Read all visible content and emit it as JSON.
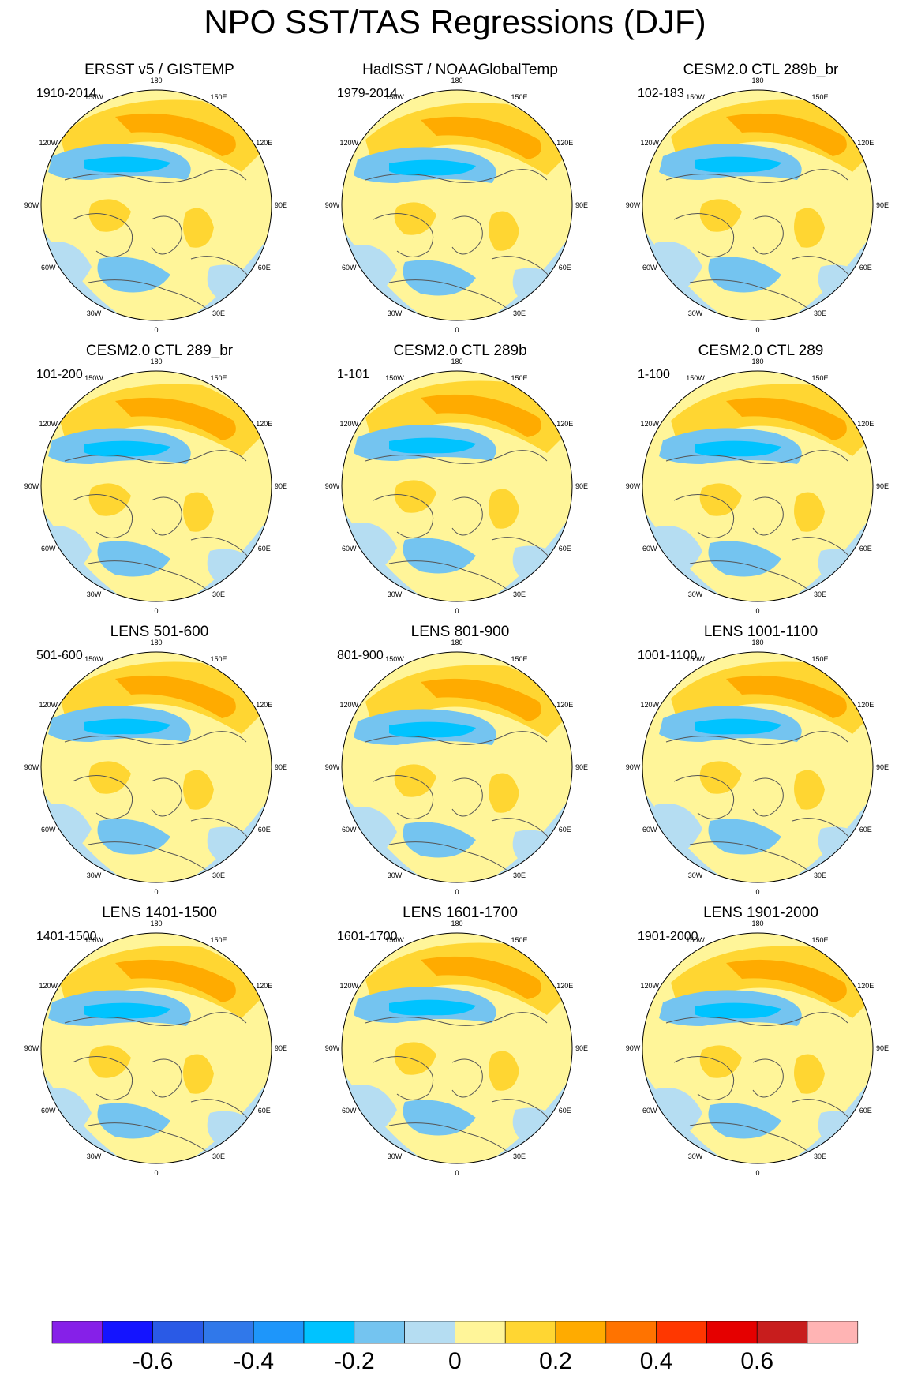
{
  "title": "NPO SST/TAS Regressions (DJF)",
  "colors": {
    "levels": [
      "#8620e8",
      "#1414ff",
      "#2a5ae6",
      "#3078ea",
      "#1e96fa",
      "#00c3ff",
      "#74c4f0",
      "#b5ddf2",
      "#fff599",
      "#ffd632",
      "#ffab00",
      "#ff7300",
      "#ff3700",
      "#e50000",
      "#c81d1d",
      "#ffb4b4"
    ],
    "coast": "#555555",
    "missing": "#ffffff"
  },
  "longitude_labels": [
    "180",
    "150E",
    "120E",
    "90E",
    "60E",
    "30E",
    "0",
    "30W",
    "60W",
    "90W",
    "120W",
    "150W"
  ],
  "panels": [
    {
      "title": "ERSST v5 / GISTEMP",
      "period": "1910-2014"
    },
    {
      "title": "HadISST / NOAAGlobalTemp",
      "period": "1979-2014"
    },
    {
      "title": "CESM2.0 CTL 289b_br",
      "period": "102-183"
    },
    {
      "title": "CESM2.0 CTL 289_br",
      "period": "101-200"
    },
    {
      "title": "CESM2.0 CTL 289b",
      "period": "1-101"
    },
    {
      "title": "CESM2.0 CTL 289",
      "period": "1-100"
    },
    {
      "title": "LENS 501-600",
      "period": "501-600"
    },
    {
      "title": "LENS 801-900",
      "period": "801-900"
    },
    {
      "title": "LENS 1001-1100",
      "period": "1001-1100"
    },
    {
      "title": "LENS 1401-1500",
      "period": "1401-1500"
    },
    {
      "title": "LENS 1601-1700",
      "period": "1601-1700"
    },
    {
      "title": "LENS 1901-2000",
      "period": "1901-2000"
    }
  ],
  "colorbar": {
    "labels": [
      "-0.6",
      "-0.4",
      "-0.2",
      "0",
      "0.2",
      "0.4",
      "0.6"
    ]
  }
}
